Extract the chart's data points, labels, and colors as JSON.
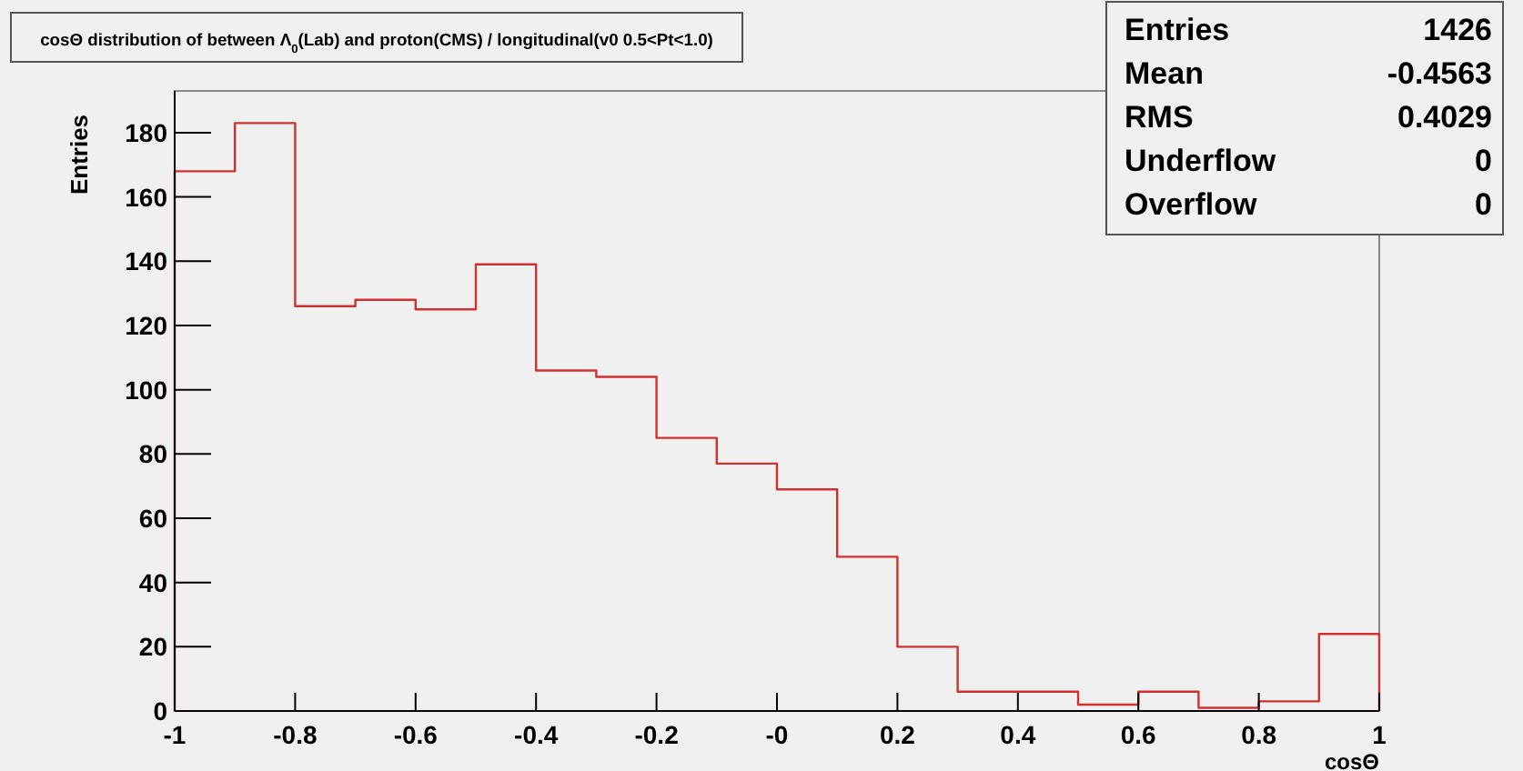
{
  "chart_data": {
    "type": "histogram",
    "title": "cosΘ distribution of between Λ$_{0}$(Lab) and proton(CMS) / longitudinal(v0 0.5<Pt<1.0)",
    "xlabel": "cosΘ",
    "ylabel": "Entries",
    "bins": [
      -1,
      -0.9,
      -0.8,
      -0.7,
      -0.6,
      -0.5,
      -0.4,
      -0.3,
      -0.2,
      -0.1,
      0,
      0.1,
      0.2,
      0.3,
      0.4,
      0.5,
      0.6,
      0.7,
      0.8,
      0.9,
      1
    ],
    "values": [
      168,
      183,
      126,
      128,
      125,
      139,
      106,
      104,
      85,
      77,
      69,
      48,
      20,
      6,
      6,
      2,
      6,
      1,
      3,
      24
    ],
    "color": "#d03030",
    "xlim": [
      -1,
      1
    ],
    "xticks": [
      -1,
      -0.8,
      -0.6,
      -0.4,
      -0.2,
      {
        "value": 0,
        "label": "-0"
      },
      0.2,
      0.4,
      0.6,
      0.8,
      1
    ],
    "ylim": [
      0,
      193
    ],
    "yticks": [
      0,
      20,
      40,
      60,
      80,
      100,
      120,
      140,
      160,
      180
    ],
    "annotations": [
      "Entries",
      "1426",
      "Mean",
      "-0.4563",
      "RMS",
      "0.4029",
      "Underflow",
      "0",
      "Overflow",
      "0"
    ]
  }
}
